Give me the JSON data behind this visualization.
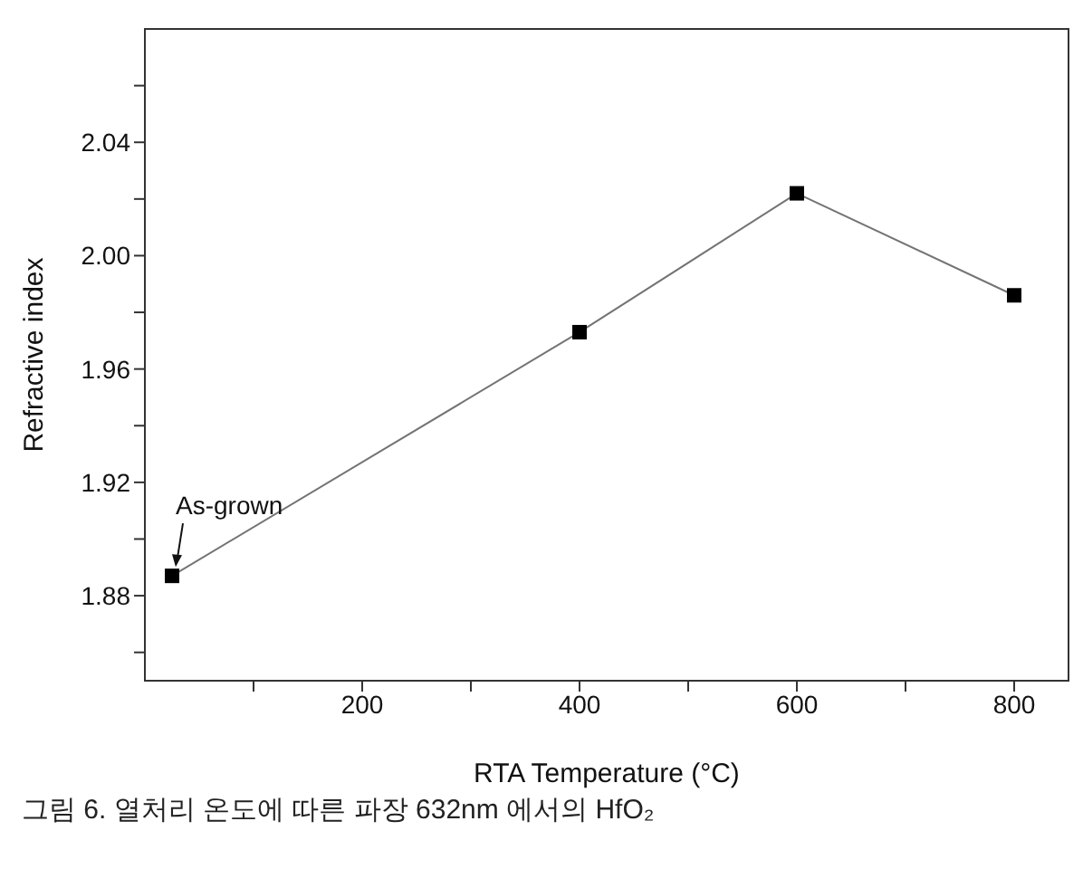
{
  "chart_data": {
    "type": "line",
    "xlabel": "RTA Temperature (°C)",
    "ylabel": "Refractive index",
    "x": [
      25,
      400,
      600,
      800
    ],
    "series": [
      {
        "color": "#000000",
        "values": [
          1.887,
          1.973,
          2.022,
          1.986
        ]
      }
    ],
    "xlim": [
      0,
      850
    ],
    "xticks": [
      {
        "value": 100,
        "label": null
      },
      200,
      {
        "value": 300,
        "label": null
      },
      400,
      {
        "value": 500,
        "label": null
      },
      600,
      {
        "value": 700,
        "label": null
      },
      800
    ],
    "ylim": [
      1.85,
      2.08
    ],
    "yticks": [
      {
        "value": 1.86,
        "label": null
      },
      1.88,
      {
        "value": 1.9,
        "label": null
      },
      1.92,
      {
        "value": 1.94,
        "label": null
      },
      1.96,
      {
        "value": 1.98,
        "label": null
      },
      {
        "value": 2,
        "label": "2.00"
      },
      {
        "value": 2.02,
        "label": null
      },
      2.04,
      {
        "value": 2.06,
        "label": null
      }
    ],
    "marker": "square",
    "line_style": "solid",
    "grid": false,
    "legend": false,
    "annotations": [
      {
        "text": "As-grown",
        "x": 25,
        "y": 1.887
      },
      "그림 6. 열처리 온도에 따른 파장 632nm 에서의 HfO₂"
    ]
  }
}
